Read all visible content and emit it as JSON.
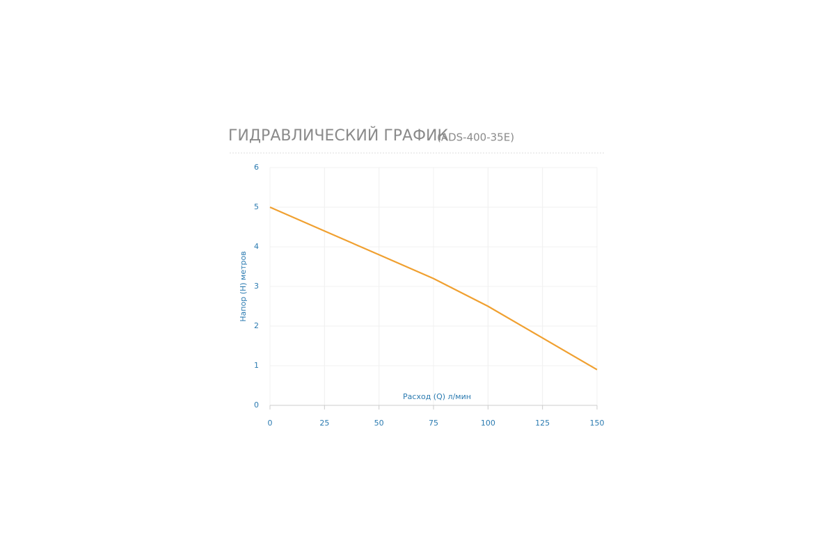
{
  "chart_data": {
    "type": "line",
    "title": "ГИДРАВЛИЧЕСКИЙ ГРАФИК",
    "subtitle": "(ADS-400-35E)",
    "x_label": "Расход (Q) л/мин",
    "y_label": "Напор (H) метров",
    "x": [
      0,
      25,
      50,
      75,
      100,
      125,
      150
    ],
    "series": [
      {
        "name": "ADS-400-35E",
        "color": "#f0a030",
        "values": [
          5,
          4.4,
          3.8,
          3.2,
          2.5,
          1.7,
          0.9
        ]
      }
    ],
    "xlim": [
      0,
      150
    ],
    "xticks": [
      0,
      25,
      50,
      75,
      100,
      125,
      150
    ],
    "ylim": [
      0,
      6
    ],
    "yticks": [
      0,
      1,
      2,
      3,
      4,
      5,
      6
    ],
    "grid": true
  }
}
